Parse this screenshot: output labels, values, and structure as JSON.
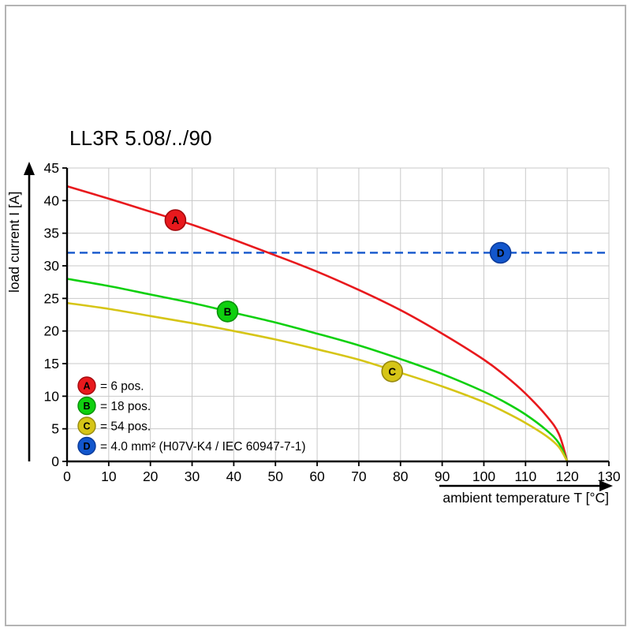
{
  "title": "LL3R 5.08/../90",
  "chart_data": {
    "type": "line",
    "title": "LL3R 5.08/../90",
    "xlabel": "ambient temperature T [°C]",
    "ylabel": "load current I [A]",
    "xlim": [
      0,
      130
    ],
    "ylim": [
      0,
      45
    ],
    "xticks": [
      0,
      10,
      20,
      30,
      40,
      50,
      60,
      70,
      80,
      90,
      100,
      110,
      120,
      130
    ],
    "yticks": [
      0,
      5,
      10,
      15,
      20,
      25,
      30,
      35,
      40,
      45
    ],
    "grid": true,
    "grid_color": "#c9c9c9",
    "axis_color": "#000000",
    "legend_position": "bottom-left-inside",
    "series": [
      {
        "id": "A",
        "label": "= 6 pos.",
        "color": "#e8191d",
        "stroke": "#a50a0e",
        "marker": {
          "x": 26,
          "y": 37
        },
        "points": [
          [
            0,
            42.2
          ],
          [
            10,
            40.3
          ],
          [
            20,
            38.3
          ],
          [
            30,
            36.3
          ],
          [
            40,
            34.0
          ],
          [
            50,
            31.6
          ],
          [
            60,
            29.1
          ],
          [
            70,
            26.3
          ],
          [
            80,
            23.2
          ],
          [
            90,
            19.6
          ],
          [
            100,
            15.6
          ],
          [
            105,
            13.2
          ],
          [
            110,
            10.4
          ],
          [
            115,
            7.0
          ],
          [
            118,
            4.2
          ],
          [
            120,
            0
          ]
        ]
      },
      {
        "id": "B",
        "label": "= 18 pos.",
        "color": "#0fd00f",
        "stroke": "#089008",
        "marker": {
          "x": 38.5,
          "y": 23
        },
        "points": [
          [
            0,
            28.0
          ],
          [
            10,
            26.9
          ],
          [
            20,
            25.6
          ],
          [
            30,
            24.3
          ],
          [
            40,
            22.8
          ],
          [
            50,
            21.3
          ],
          [
            60,
            19.6
          ],
          [
            70,
            17.8
          ],
          [
            80,
            15.7
          ],
          [
            90,
            13.4
          ],
          [
            100,
            10.7
          ],
          [
            105,
            9.1
          ],
          [
            110,
            7.2
          ],
          [
            115,
            4.8
          ],
          [
            118,
            2.8
          ],
          [
            120,
            0
          ]
        ]
      },
      {
        "id": "C",
        "label": "= 54 pos.",
        "color": "#d6c517",
        "stroke": "#97890d",
        "marker": {
          "x": 78,
          "y": 13.8
        },
        "points": [
          [
            0,
            24.3
          ],
          [
            10,
            23.4
          ],
          [
            20,
            22.3
          ],
          [
            30,
            21.2
          ],
          [
            40,
            20.0
          ],
          [
            50,
            18.7
          ],
          [
            60,
            17.2
          ],
          [
            70,
            15.6
          ],
          [
            80,
            13.6
          ],
          [
            90,
            11.5
          ],
          [
            100,
            9.1
          ],
          [
            105,
            7.6
          ],
          [
            110,
            5.9
          ],
          [
            115,
            3.9
          ],
          [
            118,
            2.2
          ],
          [
            120,
            0
          ]
        ]
      },
      {
        "id": "D",
        "label": "= 4.0 mm² (H07V-K4 / IEC 60947-7-1)",
        "color": "#1256cc",
        "stroke": "#0a3a99",
        "style": "dashed-horizontal",
        "value": 32,
        "marker": {
          "x": 104,
          "y": 32
        }
      }
    ]
  }
}
